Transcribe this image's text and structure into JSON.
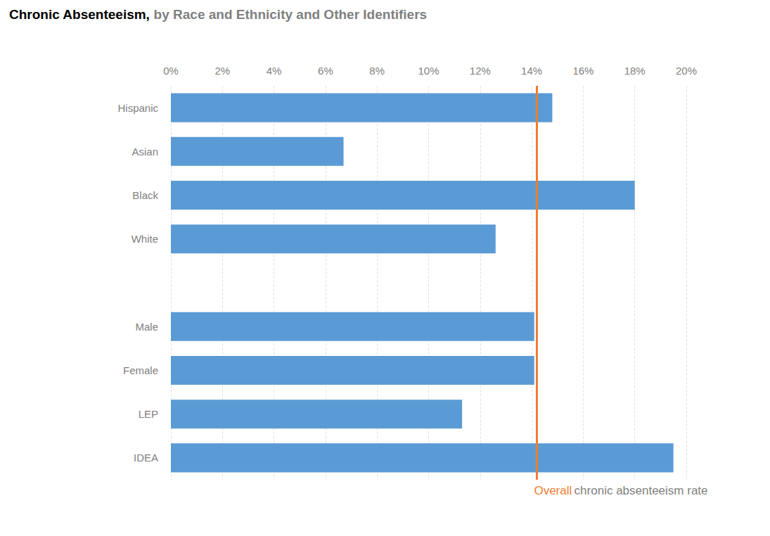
{
  "chart_data": {
    "type": "bar",
    "orientation": "horizontal",
    "title": "Chronic Absenteeism,",
    "subtitle": "by Race and Ethnicity and Other Identifiers",
    "categories": [
      "Hispanic",
      "Asian",
      "Black",
      "White",
      null,
      "Male",
      "Female",
      "LEP",
      "IDEA"
    ],
    "values": [
      14.8,
      6.7,
      18.0,
      12.6,
      null,
      14.1,
      14.1,
      11.3,
      19.5
    ],
    "color": "#5b9bd5",
    "xlim": [
      0,
      20
    ],
    "xticks": [
      {
        "value": 0,
        "label": "0%"
      },
      {
        "value": 2,
        "label": "2%"
      },
      {
        "value": 4,
        "label": "4%"
      },
      {
        "value": 6,
        "label": "6%"
      },
      {
        "value": 8,
        "label": "8%"
      },
      {
        "value": 10,
        "label": "10%"
      },
      {
        "value": 12,
        "label": "12%"
      },
      {
        "value": 14,
        "label": "14%"
      },
      {
        "value": 16,
        "label": "16%"
      },
      {
        "value": 18,
        "label": "18%"
      },
      {
        "value": 20,
        "label": "20%"
      }
    ],
    "grid": true,
    "annotation": {
      "value": 14.2,
      "label": "Overall",
      "text": "chronic absenteeism rate",
      "color": "#ed7d31"
    }
  }
}
